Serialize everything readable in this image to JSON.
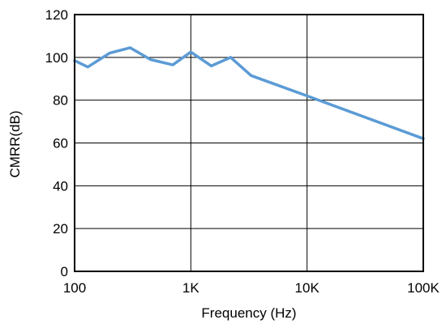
{
  "chart_data": {
    "type": "line",
    "xscale": "log",
    "xlabel": "Frequency (Hz)",
    "ylabel": "CMRR(dB)",
    "xlim": [
      100,
      100000
    ],
    "ylim": [
      0,
      120
    ],
    "xticks": [
      {
        "value": 100,
        "label": "100"
      },
      {
        "value": 1000,
        "label": "1K"
      },
      {
        "value": 10000,
        "label": "10K"
      },
      {
        "value": 100000,
        "label": "100K"
      }
    ],
    "yticks": [
      {
        "value": 0,
        "label": "0"
      },
      {
        "value": 20,
        "label": "20"
      },
      {
        "value": 40,
        "label": "40"
      },
      {
        "value": 60,
        "label": "60"
      },
      {
        "value": 80,
        "label": "80"
      },
      {
        "value": 100,
        "label": "100"
      },
      {
        "value": 120,
        "label": "120"
      }
    ],
    "grid": true,
    "series": [
      {
        "color": "#5B9BD5",
        "x": [
          100,
          130,
          200,
          300,
          450,
          700,
          1000,
          1500,
          2200,
          3300,
          10000,
          100000
        ],
        "y": [
          98.5,
          95.5,
          102,
          104.5,
          99,
          96.5,
          102.5,
          96,
          100,
          91.5,
          82,
          62
        ]
      }
    ]
  }
}
